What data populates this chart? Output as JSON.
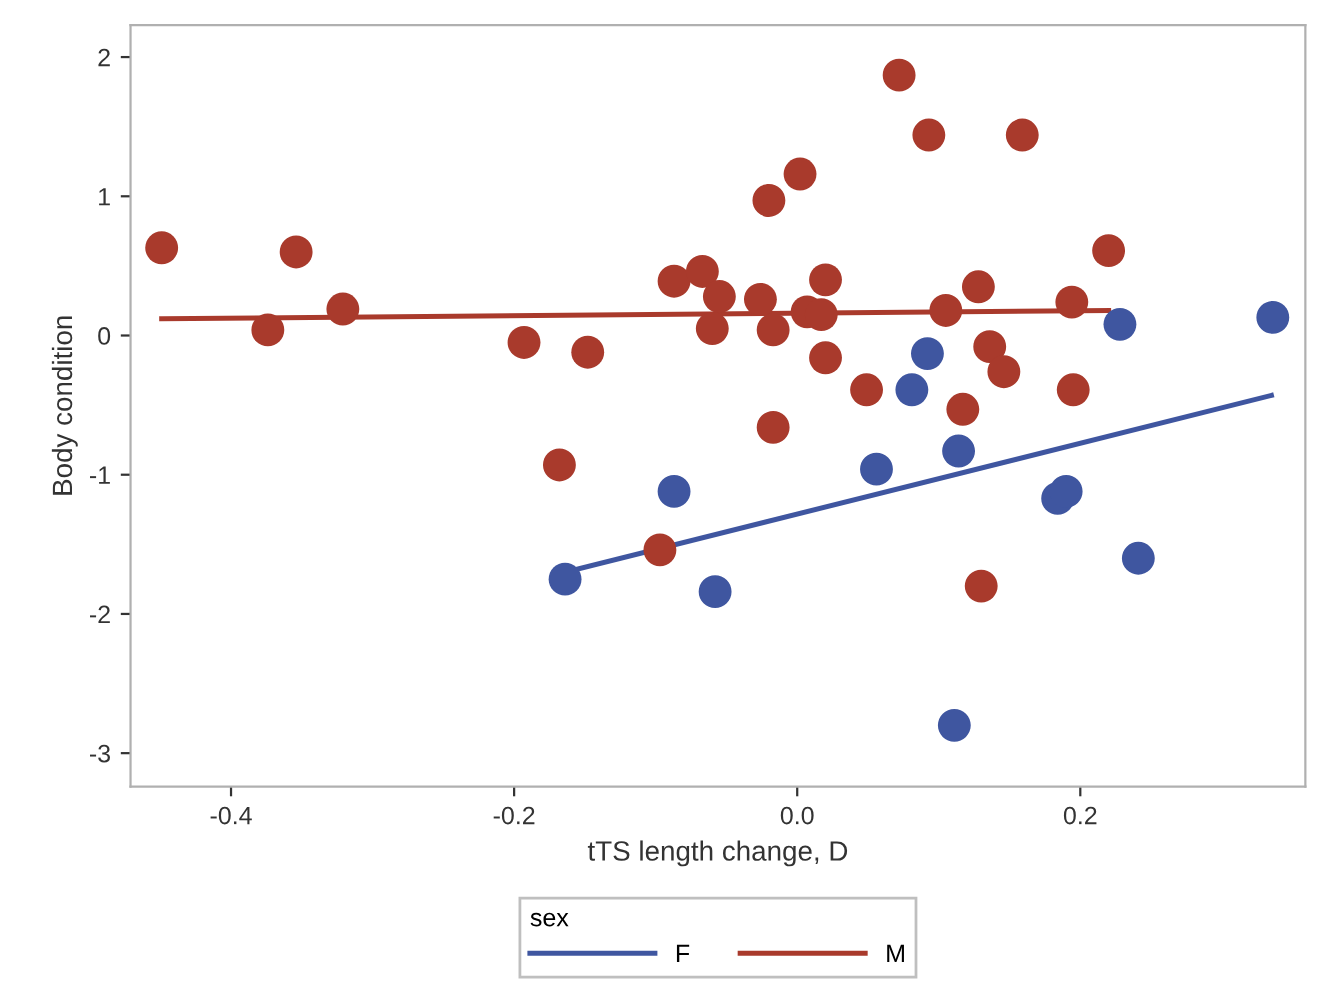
{
  "chart_data": {
    "type": "scatter",
    "xlabel": "tTS length change, D",
    "ylabel": "Body condition",
    "legend_title": "sex",
    "legend": "bottom",
    "grid": false,
    "xlim": [
      -0.471,
      0.359
    ],
    "xticks": [
      -0.4,
      -0.2,
      {
        "value": 0,
        "label": "0.0"
      },
      0.2
    ],
    "ylim": [
      -3.24,
      2.23
    ],
    "yticks": [
      -3,
      -2,
      -1,
      0,
      1,
      2
    ],
    "series": [
      {
        "marker": "circle",
        "color": "#a93a2c",
        "x": [
          -0.449,
          -0.374,
          -0.354,
          -0.321,
          -0.193,
          -0.148,
          -0.168,
          -0.097,
          -0.087,
          -0.067,
          -0.055,
          -0.06,
          -0.026,
          -0.02,
          -0.017,
          -0.017,
          0.002,
          0.007,
          0.017,
          0.02,
          0.02,
          0.049,
          0.072,
          0.093,
          0.105,
          0.117,
          0.128,
          0.136,
          0.146,
          0.13,
          0.159,
          0.194,
          0.195,
          0.22
        ],
        "values": [
          0.63,
          0.04,
          0.6,
          0.19,
          -0.05,
          -0.12,
          -0.93,
          -1.54,
          0.39,
          0.46,
          0.28,
          0.05,
          0.26,
          0.97,
          0.04,
          -0.66,
          1.16,
          0.17,
          0.15,
          0.4,
          -0.16,
          -0.39,
          1.87,
          1.44,
          0.18,
          -0.53,
          0.35,
          -0.08,
          -0.26,
          -1.8,
          1.44,
          0.24,
          -0.39,
          0.61
        ]
      },
      {
        "marker": "circle",
        "color": "#3f56a0",
        "x": [
          -0.164,
          -0.087,
          -0.058,
          0.056,
          0.081,
          0.092,
          0.114,
          0.111,
          0.184,
          0.19,
          0.228,
          0.241,
          0.336
        ],
        "values": [
          -1.75,
          -1.12,
          -1.84,
          -0.96,
          -0.39,
          -0.13,
          -0.83,
          -2.8,
          -1.17,
          -1.12,
          0.08,
          -1.6,
          0.13
        ]
      },
      {
        "type": "line",
        "marker": "none",
        "name": "F",
        "color": "#3f56a0",
        "x": [
          -0.164,
          0.335
        ],
        "values": [
          -1.7,
          -0.43
        ]
      },
      {
        "type": "line",
        "marker": "none",
        "name": "M",
        "color": "#a93a2c",
        "x": [
          -0.449,
          0.22
        ],
        "values": [
          0.12,
          0.18
        ]
      }
    ]
  }
}
